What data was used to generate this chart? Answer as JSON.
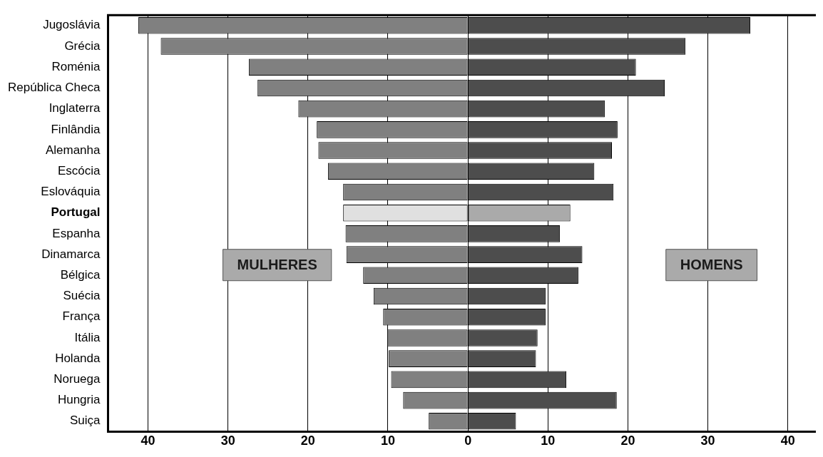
{
  "chart_data": {
    "type": "bar",
    "orientation": "horizontal",
    "stacked": true,
    "categories": [
      "Jugoslávia",
      "Grécia",
      "Roménia",
      "República Checa",
      "Inglaterra",
      "Finlândia",
      "Alemanha",
      "Escócia",
      "Eslováquia",
      "Portugal",
      "Espanha",
      "Dinamarca",
      "Bélgica",
      "Suécia",
      "França",
      "Itália",
      "Holanda",
      "Noruega",
      "Hungria",
      "Suiça"
    ],
    "series": [
      {
        "name": "MULHERES",
        "colors": [
          "#808080",
          "#808080",
          "#808080",
          "#808080",
          "#808080",
          "#808080",
          "#808080",
          "#808080",
          "#808080",
          "#e0e0e0",
          "#808080",
          "#808080",
          "#808080",
          "#808080",
          "#808080",
          "#808080",
          "#808080",
          "#808080",
          "#808080",
          "#808080"
        ],
        "values": [
          -41.2,
          -38.4,
          -27.4,
          -26.3,
          -21.2,
          -18.9,
          -18.7,
          -17.5,
          -15.6,
          -15.6,
          -15.3,
          -15.2,
          -13.1,
          -11.8,
          -10.6,
          -10.1,
          -9.9,
          -9.6,
          -8.1,
          -4.9
        ]
      },
      {
        "name": "HOMENS",
        "colors": [
          "#4d4d4d",
          "#4d4d4d",
          "#4d4d4d",
          "#4d4d4d",
          "#4d4d4d",
          "#4d4d4d",
          "#4d4d4d",
          "#4d4d4d",
          "#4d4d4d",
          "#aaaaaa",
          "#4d4d4d",
          "#4d4d4d",
          "#4d4d4d",
          "#4d4d4d",
          "#4d4d4d",
          "#4d4d4d",
          "#4d4d4d",
          "#4d4d4d",
          "#4d4d4d",
          "#4d4d4d"
        ],
        "values": [
          35.3,
          27.2,
          21.0,
          24.6,
          17.1,
          18.7,
          18.0,
          15.8,
          18.2,
          12.8,
          11.5,
          14.3,
          13.8,
          9.7,
          9.7,
          8.7,
          8.5,
          12.3,
          18.6,
          6.0
        ]
      }
    ],
    "xlim": [
      -45,
      43.5
    ],
    "xticks": [
      {
        "value": -40,
        "label": "40"
      },
      {
        "value": -30,
        "label": "30"
      },
      {
        "value": -20,
        "label": "20"
      },
      {
        "value": -10,
        "label": "10"
      },
      0,
      10,
      20,
      30,
      40
    ],
    "grid": "x",
    "legend": false
  }
}
